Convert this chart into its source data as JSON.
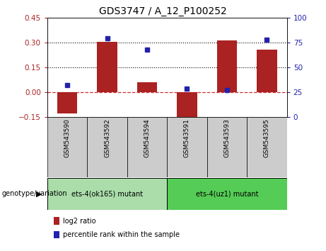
{
  "title": "GDS3747 / A_12_P100252",
  "categories": [
    "GSM543590",
    "GSM543592",
    "GSM543594",
    "GSM543591",
    "GSM543593",
    "GSM543595"
  ],
  "log2_ratio": [
    -0.13,
    0.305,
    0.06,
    -0.155,
    0.31,
    0.255
  ],
  "percentile_rank": [
    32,
    79,
    68,
    28,
    27,
    78
  ],
  "ylim_left": [
    -0.15,
    0.45
  ],
  "ylim_right": [
    0,
    100
  ],
  "yticks_left": [
    -0.15,
    0,
    0.15,
    0.3,
    0.45
  ],
  "yticks_right": [
    0,
    25,
    50,
    75,
    100
  ],
  "bar_color": "#aa2222",
  "dot_color": "#2222aa",
  "zero_line_color": "#cc3333",
  "group1_label": "ets-4(ok165) mutant",
  "group2_label": "ets-4(uz1) mutant",
  "group1_color": "#aaddaa",
  "group2_color": "#55cc55",
  "xtick_bg_color": "#cccccc",
  "genotype_label": "genotype/variation",
  "legend_bar_label": "log2 ratio",
  "legend_dot_label": "percentile rank within the sample",
  "title_fontsize": 10,
  "tick_fontsize": 7.5,
  "label_fontsize": 7,
  "xtick_fontsize": 6.5
}
